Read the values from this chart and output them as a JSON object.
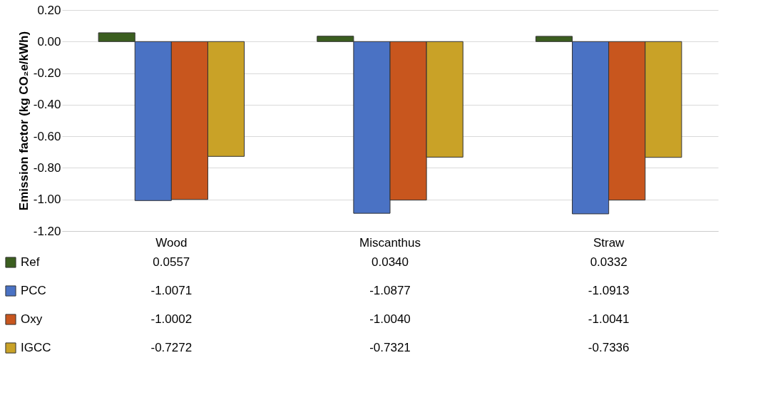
{
  "chart_data": {
    "type": "bar",
    "ylabel": "Emission factor (kg CO₂e/kWh)",
    "categories": [
      "Wood",
      "Miscanthus",
      "Straw"
    ],
    "series": [
      {
        "name": "Ref",
        "color": "#3b5e1f",
        "values": [
          0.0557,
          0.034,
          0.0332
        ],
        "value_labels": [
          "0.0557",
          "0.0340",
          "0.0332"
        ]
      },
      {
        "name": "PCC",
        "color": "#4a72c4",
        "values": [
          -1.0071,
          -1.0877,
          -1.0913
        ],
        "value_labels": [
          "-1.0071",
          "-1.0877",
          "-1.0913"
        ]
      },
      {
        "name": "Oxy",
        "color": "#c8561e",
        "values": [
          -1.0002,
          -1.004,
          -1.0041
        ],
        "value_labels": [
          "-1.0002",
          "-1.0040",
          "-1.0041"
        ]
      },
      {
        "name": "IGCC",
        "color": "#c9a227",
        "values": [
          -0.7272,
          -0.7321,
          -0.7336
        ],
        "value_labels": [
          "-0.7272",
          "-0.7321",
          "-0.7336"
        ]
      }
    ],
    "ylim": [
      -1.2,
      0.2
    ],
    "yticks": [
      {
        "value": 0.2,
        "label": "0.20"
      },
      {
        "value": 0,
        "label": "0.00"
      },
      {
        "value": -0.2,
        "label": "-0.20"
      },
      {
        "value": -0.4,
        "label": "-0.40"
      },
      {
        "value": -0.6,
        "label": "-0.60"
      },
      {
        "value": -0.8,
        "label": "-0.80"
      },
      {
        "value": -1,
        "label": "-1.00"
      },
      {
        "value": -1.2,
        "label": "-1.20"
      }
    ],
    "grid": "y",
    "legend": "bottom left"
  }
}
